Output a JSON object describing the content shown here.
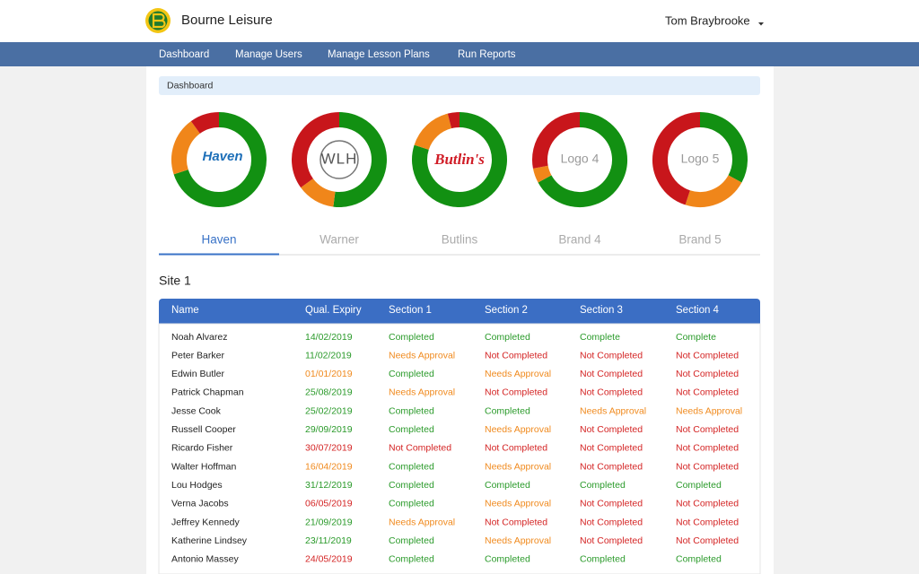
{
  "header": {
    "title": "Bourne Leisure",
    "user": "Tom Braybrooke"
  },
  "nav": [
    "Dashboard",
    "Manage Users",
    "Manage Lesson Plans",
    "Run Reports"
  ],
  "breadcrumb": "Dashboard",
  "brands": [
    {
      "tab": "Haven",
      "logo": "Haven",
      "active": true,
      "segments": [
        {
          "color": "#129012",
          "value": 70
        },
        {
          "color": "#f0861a",
          "value": 20
        },
        {
          "color": "#c8161b",
          "value": 10
        }
      ]
    },
    {
      "tab": "Warner",
      "logo": "WLH",
      "active": false,
      "segments": [
        {
          "color": "#129012",
          "value": 52
        },
        {
          "color": "#f0861a",
          "value": 13
        },
        {
          "color": "#c8161b",
          "value": 35
        }
      ]
    },
    {
      "tab": "Butlins",
      "logo": "Butlin's",
      "active": false,
      "segments": [
        {
          "color": "#129012",
          "value": 80
        },
        {
          "color": "#f0861a",
          "value": 16
        },
        {
          "color": "#c8161b",
          "value": 4
        }
      ]
    },
    {
      "tab": "Brand 4",
      "logo": "Logo 4",
      "active": false,
      "segments": [
        {
          "color": "#129012",
          "value": 67
        },
        {
          "color": "#f0861a",
          "value": 5
        },
        {
          "color": "#c8161b",
          "value": 28
        }
      ]
    },
    {
      "tab": "Brand 5",
      "logo": "Logo 5",
      "active": false,
      "segments": [
        {
          "color": "#129012",
          "value": 33
        },
        {
          "color": "#f0861a",
          "value": 22
        },
        {
          "color": "#c8161b",
          "value": 45
        }
      ]
    }
  ],
  "status_colors": {
    "Completed": "#2a9a2a",
    "Complete": "#2a9a2a",
    "Needs Approval": "#f08a1e",
    "Not Completed": "#d42424"
  },
  "site": {
    "title": "Site 1",
    "columns": [
      "Name",
      "Qual. Expiry",
      "Section 1",
      "Section 2",
      "Section 3",
      "Section 4"
    ],
    "rows": [
      [
        "Noah Alvarez",
        "14/02/2019",
        "Completed",
        "Completed",
        "Complete",
        "Complete"
      ],
      [
        "Peter Barker",
        "11/02/2019",
        "Needs Approval",
        "Not Completed",
        "Not Completed",
        "Not Completed"
      ],
      [
        "Edwin Butler",
        "01/01/2019",
        "Completed",
        "Needs Approval",
        "Not Completed",
        "Not Completed"
      ],
      [
        "Patrick Chapman",
        "25/08/2019",
        "Needs Approval",
        "Not Completed",
        "Not Completed",
        "Not Completed"
      ],
      [
        "Jesse Cook",
        "25/02/2019",
        "Completed",
        "Completed",
        "Needs Approval",
        "Needs Approval"
      ],
      [
        "Russell Cooper",
        "29/09/2019",
        "Completed",
        "Needs Approval",
        "Not Completed",
        "Not Completed"
      ],
      [
        "Ricardo Fisher",
        "30/07/2019",
        "Not Completed",
        "Not Completed",
        "Not Completed",
        "Not Completed"
      ],
      [
        "Walter Hoffman",
        "16/04/2019",
        "Completed",
        "Needs Approval",
        "Not Completed",
        "Not Completed"
      ],
      [
        "Lou Hodges",
        "31/12/2019",
        "Completed",
        "Completed",
        "Completed",
        "Completed"
      ],
      [
        "Verna Jacobs",
        "06/05/2019",
        "Completed",
        "Needs Approval",
        "Not Completed",
        "Not Completed"
      ],
      [
        "Jeffrey Kennedy",
        "21/09/2019",
        "Needs Approval",
        "Not Completed",
        "Not Completed",
        "Not Completed"
      ],
      [
        "Katherine Lindsey",
        "23/11/2019",
        "Completed",
        "Needs Approval",
        "Not Completed",
        "Not Completed"
      ],
      [
        "Antonio Massey",
        "24/05/2019",
        "Completed",
        "Completed",
        "Completed",
        "Completed"
      ]
    ],
    "expiry_colors": [
      "#2a9a2a",
      "#2a9a2a",
      "#f08a1e",
      "#2a9a2a",
      "#2a9a2a",
      "#2a9a2a",
      "#d42424",
      "#f08a1e",
      "#2a9a2a",
      "#d42424",
      "#2a9a2a",
      "#2a9a2a",
      "#d42424"
    ]
  }
}
